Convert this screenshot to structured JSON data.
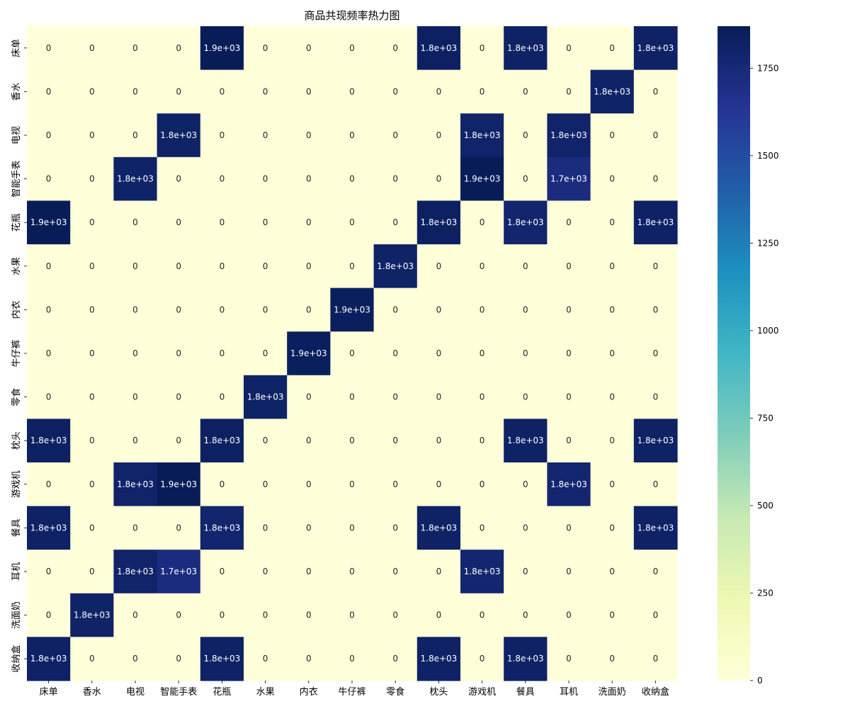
{
  "chart_data": {
    "type": "heatmap",
    "title": "商品共现频率热力图",
    "xlabel": "",
    "ylabel": "",
    "categories": [
      "床单",
      "香水",
      "电视",
      "智能手表",
      "花瓶",
      "水果",
      "内衣",
      "牛仔裤",
      "零食",
      "枕头",
      "游戏机",
      "餐具",
      "耳机",
      "洗面奶",
      "收纳盒"
    ],
    "row_categories": [
      "床单",
      "香水",
      "电视",
      "智能手表",
      "花瓶",
      "水果",
      "内衣",
      "牛仔裤",
      "零食",
      "枕头",
      "游戏机",
      "餐具",
      "耳机",
      "洗面奶",
      "收纳盒"
    ],
    "values": [
      [
        0,
        0,
        0,
        0,
        1870,
        0,
        0,
        0,
        0,
        1830,
        0,
        1820,
        0,
        0,
        1820
      ],
      [
        0,
        0,
        0,
        0,
        0,
        0,
        0,
        0,
        0,
        0,
        0,
        0,
        0,
        1810,
        0
      ],
      [
        0,
        0,
        0,
        1810,
        0,
        0,
        0,
        0,
        0,
        0,
        1800,
        0,
        1800,
        0,
        0
      ],
      [
        0,
        0,
        1810,
        0,
        0,
        0,
        0,
        0,
        0,
        0,
        1870,
        0,
        1720,
        0,
        0
      ],
      [
        1870,
        0,
        0,
        0,
        0,
        0,
        0,
        0,
        0,
        1830,
        0,
        1790,
        0,
        0,
        1820
      ],
      [
        0,
        0,
        0,
        0,
        0,
        0,
        0,
        0,
        1810,
        0,
        0,
        0,
        0,
        0,
        0
      ],
      [
        0,
        0,
        0,
        0,
        0,
        0,
        0,
        1850,
        0,
        0,
        0,
        0,
        0,
        0,
        0
      ],
      [
        0,
        0,
        0,
        0,
        0,
        0,
        1850,
        0,
        0,
        0,
        0,
        0,
        0,
        0,
        0
      ],
      [
        0,
        0,
        0,
        0,
        0,
        1810,
        0,
        0,
        0,
        0,
        0,
        0,
        0,
        0,
        0
      ],
      [
        1830,
        0,
        0,
        0,
        1830,
        0,
        0,
        0,
        0,
        0,
        0,
        1820,
        0,
        0,
        1820
      ],
      [
        0,
        0,
        1800,
        1870,
        0,
        0,
        0,
        0,
        0,
        0,
        0,
        0,
        1780,
        0,
        0
      ],
      [
        1820,
        0,
        0,
        0,
        1790,
        0,
        0,
        0,
        0,
        1820,
        0,
        0,
        0,
        0,
        1820
      ],
      [
        0,
        0,
        1800,
        1720,
        0,
        0,
        0,
        0,
        0,
        0,
        1780,
        0,
        0,
        0,
        0
      ],
      [
        0,
        1810,
        0,
        0,
        0,
        0,
        0,
        0,
        0,
        0,
        0,
        0,
        0,
        0,
        0
      ],
      [
        1820,
        0,
        0,
        0,
        1820,
        0,
        0,
        0,
        0,
        1820,
        0,
        1820,
        0,
        0,
        0
      ]
    ],
    "cell_labels": [
      [
        "0",
        "0",
        "0",
        "0",
        "1.9e+03",
        "0",
        "0",
        "0",
        "0",
        "1.8e+03",
        "0",
        "1.8e+03",
        "0",
        "0",
        "1.8e+03"
      ],
      [
        "0",
        "0",
        "0",
        "0",
        "0",
        "0",
        "0",
        "0",
        "0",
        "0",
        "0",
        "0",
        "0",
        "1.8e+03",
        "0"
      ],
      [
        "0",
        "0",
        "0",
        "1.8e+03",
        "0",
        "0",
        "0",
        "0",
        "0",
        "0",
        "1.8e+03",
        "0",
        "1.8e+03",
        "0",
        "0"
      ],
      [
        "0",
        "0",
        "1.8e+03",
        "0",
        "0",
        "0",
        "0",
        "0",
        "0",
        "0",
        "1.9e+03",
        "0",
        "1.7e+03",
        "0",
        "0"
      ],
      [
        "1.9e+03",
        "0",
        "0",
        "0",
        "0",
        "0",
        "0",
        "0",
        "0",
        "1.8e+03",
        "0",
        "1.8e+03",
        "0",
        "0",
        "1.8e+03"
      ],
      [
        "0",
        "0",
        "0",
        "0",
        "0",
        "0",
        "0",
        "0",
        "1.8e+03",
        "0",
        "0",
        "0",
        "0",
        "0",
        "0"
      ],
      [
        "0",
        "0",
        "0",
        "0",
        "0",
        "0",
        "0",
        "1.9e+03",
        "0",
        "0",
        "0",
        "0",
        "0",
        "0",
        "0"
      ],
      [
        "0",
        "0",
        "0",
        "0",
        "0",
        "0",
        "1.9e+03",
        "0",
        "0",
        "0",
        "0",
        "0",
        "0",
        "0",
        "0"
      ],
      [
        "0",
        "0",
        "0",
        "0",
        "0",
        "1.8e+03",
        "0",
        "0",
        "0",
        "0",
        "0",
        "0",
        "0",
        "0",
        "0"
      ],
      [
        "1.8e+03",
        "0",
        "0",
        "0",
        "1.8e+03",
        "0",
        "0",
        "0",
        "0",
        "0",
        "0",
        "1.8e+03",
        "0",
        "0",
        "1.8e+03"
      ],
      [
        "0",
        "0",
        "1.8e+03",
        "1.9e+03",
        "0",
        "0",
        "0",
        "0",
        "0",
        "0",
        "0",
        "0",
        "1.8e+03",
        "0",
        "0"
      ],
      [
        "1.8e+03",
        "0",
        "0",
        "0",
        "1.8e+03",
        "0",
        "0",
        "0",
        "0",
        "1.8e+03",
        "0",
        "0",
        "0",
        "0",
        "1.8e+03"
      ],
      [
        "0",
        "0",
        "1.8e+03",
        "1.7e+03",
        "0",
        "0",
        "0",
        "0",
        "0",
        "0",
        "1.8e+03",
        "0",
        "0",
        "0",
        "0"
      ],
      [
        "0",
        "1.8e+03",
        "0",
        "0",
        "0",
        "0",
        "0",
        "0",
        "0",
        "0",
        "0",
        "0",
        "0",
        "0",
        "0"
      ],
      [
        "1.8e+03",
        "0",
        "0",
        "0",
        "1.8e+03",
        "0",
        "0",
        "0",
        "0",
        "1.8e+03",
        "0",
        "1.8e+03",
        "0",
        "0",
        "0"
      ]
    ],
    "colorscale": "YlGnBu",
    "color_range": [
      0,
      1870
    ],
    "colorbar_ticks": [
      0,
      250,
      500,
      750,
      1000,
      1250,
      1500,
      1750
    ],
    "colorbar_tick_labels": [
      "0",
      "250",
      "500",
      "750",
      "1000",
      "1250",
      "1500",
      "1750"
    ],
    "grid": false,
    "legend": "right (colorbar)"
  }
}
